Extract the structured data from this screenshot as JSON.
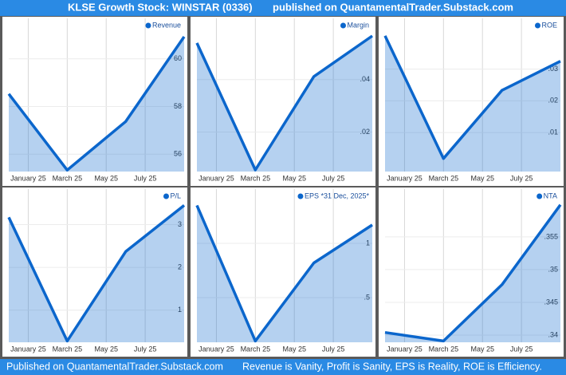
{
  "header": {
    "title": "KLSE Growth Stock: WINSTAR (0336)",
    "subtitle": "published on QuantamentalTrader.Substack.com"
  },
  "footer": {
    "left": "Published on QuantamentalTrader.Substack.com",
    "right": "Revenue is Vanity, Profit is Sanity, EPS is Reality, ROE is Efficiency."
  },
  "chart_data": [
    {
      "type": "area",
      "x": [
        "2024-12",
        "2025-03",
        "2025-06",
        "2025-09"
      ],
      "xticks": [
        {
          "value": "2025-01",
          "label": "January 25"
        },
        {
          "value": "2025-03",
          "label": "March 25"
        },
        {
          "value": "2025-05",
          "label": "May 25"
        },
        {
          "value": "2025-07",
          "label": "July 25"
        }
      ],
      "series": [
        {
          "name": "Revenue",
          "color": "#0b66cc",
          "values": [
            58.53,
            55.33,
            57.37,
            60.93
          ]
        }
      ],
      "ylim": [
        55.27,
        61.7
      ],
      "yticks": [
        56,
        58,
        60
      ],
      "grid": true,
      "legend": "top-right"
    },
    {
      "type": "area",
      "x": [
        "2024-12",
        "2025-03",
        "2025-06",
        "2025-09"
      ],
      "xticks": [
        {
          "value": "2025-01",
          "label": "January 25"
        },
        {
          "value": "2025-03",
          "label": "March 25"
        },
        {
          "value": "2025-05",
          "label": "May 25"
        },
        {
          "value": "2025-07",
          "label": "July 25"
        }
      ],
      "series": [
        {
          "name": "Margin",
          "color": "#0b66cc",
          "values": [
            0.054,
            0.0055,
            0.0412,
            0.0567
          ]
        }
      ],
      "ylim": [
        0.0049,
        0.0634
      ],
      "yticks": [
        {
          "value": 0.02,
          "label": ".02"
        },
        {
          "value": 0.04,
          "label": ".04"
        }
      ],
      "grid": true,
      "legend": "top-right"
    },
    {
      "type": "area",
      "x": [
        "2024-12",
        "2025-03",
        "2025-06",
        "2025-09"
      ],
      "xticks": [
        {
          "value": "2025-01",
          "label": "January 25"
        },
        {
          "value": "2025-03",
          "label": "March 25"
        },
        {
          "value": "2025-05",
          "label": "May 25"
        },
        {
          "value": "2025-07",
          "label": "July 25"
        }
      ],
      "series": [
        {
          "name": "ROE",
          "color": "#0b66cc",
          "values": [
            0.0405,
            0.0018,
            0.0233,
            0.0325
          ]
        }
      ],
      "ylim": [
        -0.0023,
        0.046
      ],
      "yticks": [
        {
          "value": 0.01,
          "label": ".01"
        },
        {
          "value": 0.02,
          "label": ".02"
        },
        {
          "value": 0.03,
          "label": ".03"
        }
      ],
      "grid": true,
      "legend": "top-right"
    },
    {
      "type": "area",
      "x": [
        "2024-12",
        "2025-03",
        "2025-06",
        "2025-09"
      ],
      "xticks": [
        {
          "value": "2025-01",
          "label": "January 25"
        },
        {
          "value": "2025-03",
          "label": "March 25"
        },
        {
          "value": "2025-05",
          "label": "May 25"
        },
        {
          "value": "2025-07",
          "label": "July 25"
        }
      ],
      "series": [
        {
          "name": "P/L",
          "color": "#0b66cc",
          "values": [
            3.17,
            0.28,
            2.37,
            3.45
          ]
        }
      ],
      "ylim": [
        0.25,
        3.83
      ],
      "yticks": [
        1,
        2,
        3
      ],
      "grid": true,
      "legend": "top-right"
    },
    {
      "type": "area",
      "x": [
        "2024-12",
        "2025-03",
        "2025-06",
        "2025-09"
      ],
      "xticks": [
        {
          "value": "2025-01",
          "label": "January 25"
        },
        {
          "value": "2025-03",
          "label": "March 25"
        },
        {
          "value": "2025-05",
          "label": "May 25"
        },
        {
          "value": "2025-07",
          "label": "July 25"
        }
      ],
      "series": [
        {
          "name": "EPS *31 Dec, 2025*",
          "color": "#0b66cc",
          "values": [
            1.35,
            0.1,
            0.82,
            1.17
          ]
        }
      ],
      "ylim": [
        0.088,
        1.5
      ],
      "yticks": [
        {
          "value": 0.5,
          "label": ".5"
        },
        1
      ],
      "grid": true,
      "legend": "top-right"
    },
    {
      "type": "area",
      "x": [
        "2024-12",
        "2025-03",
        "2025-06",
        "2025-09"
      ],
      "xticks": [
        {
          "value": "2025-01",
          "label": "January 25"
        },
        {
          "value": "2025-03",
          "label": "March 25"
        },
        {
          "value": "2025-05",
          "label": "May 25"
        },
        {
          "value": "2025-07",
          "label": "July 25"
        }
      ],
      "series": [
        {
          "name": "NTA",
          "color": "#0b66cc",
          "values": [
            0.3404,
            0.3391,
            0.3477,
            0.3599
          ]
        }
      ],
      "ylim": [
        0.3389,
        0.3623
      ],
      "yticks": [
        {
          "value": 0.34,
          "label": ".34"
        },
        {
          "value": 0.345,
          "label": ".345"
        },
        {
          "value": 0.35,
          "label": ".35"
        },
        {
          "value": 0.355,
          "label": ".355"
        }
      ],
      "grid": true,
      "legend": "top-right"
    }
  ]
}
